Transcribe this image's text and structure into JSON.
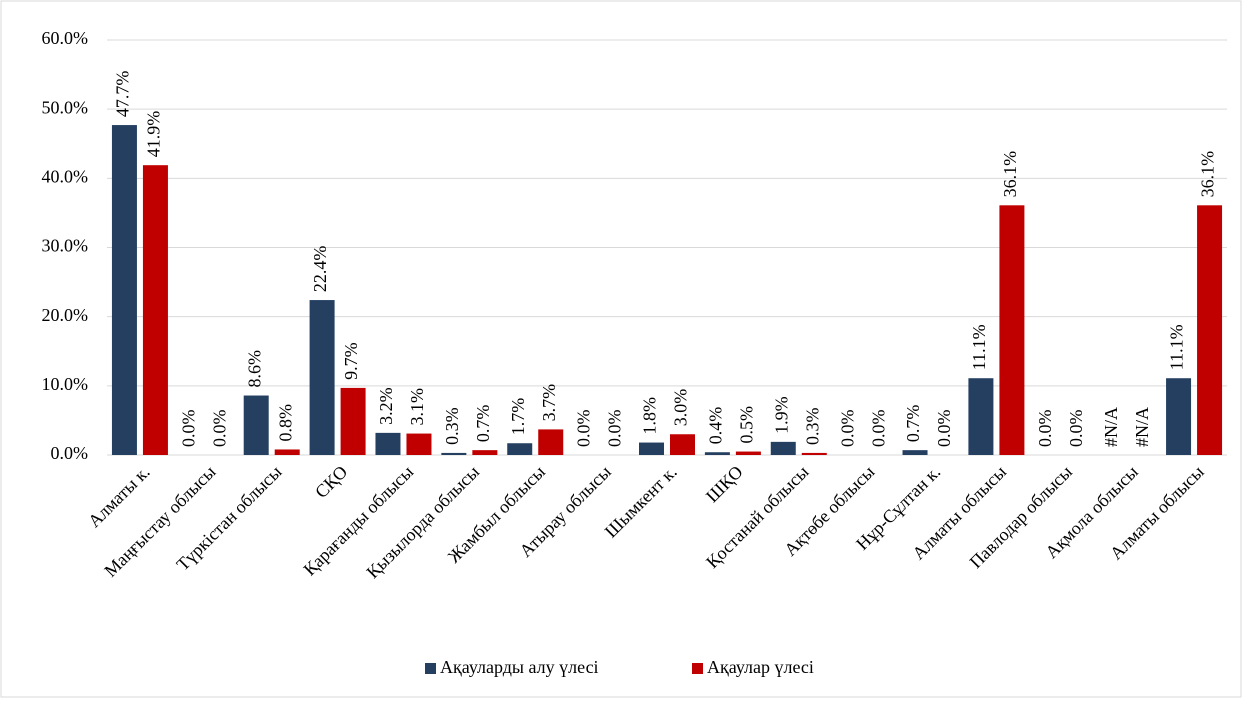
{
  "chart_data": {
    "type": "bar",
    "categories": [
      "Алматы к.",
      "Маңғыстау облысы",
      "Түркістан облысы",
      "СҚО",
      "Қарағанды облысы",
      "Қызылорда облысы",
      "Жамбыл облысы",
      "Атырау облысы",
      "Шымкент к.",
      "ШҚО",
      "Қостанай облысы",
      "Ақтөбе облысы",
      "Нұр-Сұлтан к.",
      "Алматы облысы",
      "Павлодар облысы",
      "Ақмола облысы",
      "Алматы облысы"
    ],
    "series": [
      {
        "name": "Ақауларды алу үлесі",
        "color": "#243f60",
        "values": [
          47.7,
          0.0,
          8.6,
          22.4,
          3.2,
          0.3,
          1.7,
          0.0,
          1.8,
          0.4,
          1.9,
          0.0,
          0.7,
          11.1,
          0.0,
          null,
          11.1
        ],
        "value_labels": [
          "47.7%",
          "0.0%",
          "8.6%",
          "22.4%",
          "3.2%",
          "0.3%",
          "1.7%",
          "0.0%",
          "1.8%",
          "0.4%",
          "1.9%",
          "0.0%",
          "0.7%",
          "11.1%",
          "0.0%",
          "#N/A",
          "11.1%"
        ]
      },
      {
        "name": "Ақаулар үлесі",
        "color": "#c00000",
        "values": [
          41.9,
          0.0,
          0.8,
          9.7,
          3.1,
          0.7,
          3.7,
          0.0,
          3.0,
          0.5,
          0.3,
          0.0,
          0.0,
          36.1,
          0.0,
          null,
          36.1
        ],
        "value_labels": [
          "41.9%",
          "0.0%",
          "0.8%",
          "9.7%",
          "3.1%",
          "0.7%",
          "3.7%",
          "0.0%",
          "3.0%",
          "0.5%",
          "0.3%",
          "0.0%",
          "0.0%",
          "36.1%",
          "0.0%",
          "#N/A",
          "36.1%"
        ]
      }
    ],
    "ylim": [
      0,
      60
    ],
    "yticks": [
      {
        "value": 0,
        "label": "0.0%"
      },
      {
        "value": 10,
        "label": "10.0%"
      },
      {
        "value": 20,
        "label": "20.0%"
      },
      {
        "value": 30,
        "label": "30.0%"
      },
      {
        "value": 40,
        "label": "40.0%"
      },
      {
        "value": 50,
        "label": "50.0%"
      },
      {
        "value": 60,
        "label": "60.0%"
      }
    ],
    "grid": true,
    "legend": "bottom"
  }
}
